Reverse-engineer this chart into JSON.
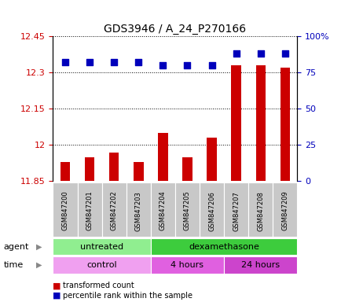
{
  "title": "GDS3946 / A_24_P270166",
  "samples": [
    "GSM847200",
    "GSM847201",
    "GSM847202",
    "GSM847203",
    "GSM847204",
    "GSM847205",
    "GSM847206",
    "GSM847207",
    "GSM847208",
    "GSM847209"
  ],
  "red_values": [
    11.93,
    11.95,
    11.97,
    11.93,
    12.05,
    11.95,
    12.03,
    12.33,
    12.33,
    12.32
  ],
  "blue_values": [
    82,
    82,
    82,
    82,
    80,
    80,
    80,
    88,
    88,
    88
  ],
  "ylim_left": [
    11.85,
    12.45
  ],
  "ylim_right": [
    0,
    100
  ],
  "yticks_left": [
    11.85,
    12.0,
    12.15,
    12.3,
    12.45
  ],
  "ytick_labels_left": [
    "11.85",
    "12",
    "12.15",
    "12.3",
    "12.45"
  ],
  "yticks_right": [
    0,
    25,
    50,
    75,
    100
  ],
  "ytick_labels_right": [
    "0",
    "25",
    "50",
    "75",
    "100%"
  ],
  "agent_groups": [
    {
      "label": "untreated",
      "start": 0,
      "end": 4,
      "color": "#90EE90"
    },
    {
      "label": "dexamethasone",
      "start": 4,
      "end": 10,
      "color": "#3DCC3D"
    }
  ],
  "time_groups": [
    {
      "label": "control",
      "start": 0,
      "end": 4,
      "color": "#F0A0F0"
    },
    {
      "label": "4 hours",
      "start": 4,
      "end": 7,
      "color": "#E060E0"
    },
    {
      "label": "24 hours",
      "start": 7,
      "end": 10,
      "color": "#CC44CC"
    }
  ],
  "bar_color": "#CC0000",
  "dot_color": "#0000BB",
  "bar_width": 0.4,
  "dot_size": 40,
  "background_color": "#FFFFFF",
  "tick_label_color_left": "#CC0000",
  "tick_label_color_right": "#0000BB",
  "legend_red": "transformed count",
  "legend_blue": "percentile rank within the sample",
  "agent_label": "agent",
  "time_label": "time",
  "sample_bg_color": "#C8C8C8"
}
